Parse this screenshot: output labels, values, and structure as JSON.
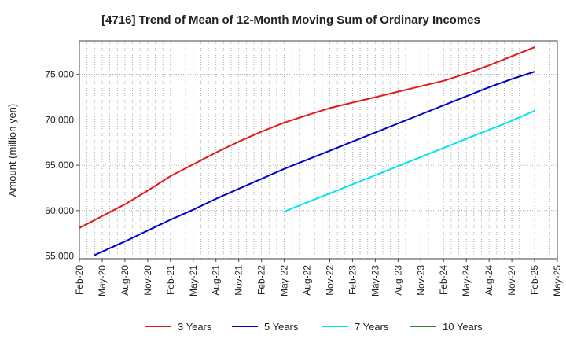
{
  "chart_data": {
    "type": "line",
    "title": "[4716]  Trend of Mean of 12-Month Moving Sum of Ordinary Incomes",
    "xlabel": "",
    "ylabel": "Amount (million yen)",
    "x_tick_labels": [
      "Feb-20",
      "May-20",
      "Aug-20",
      "Nov-20",
      "Feb-21",
      "May-21",
      "Aug-21",
      "Nov-21",
      "Feb-22",
      "May-22",
      "Aug-22",
      "Nov-22",
      "Feb-23",
      "May-23",
      "Aug-23",
      "Nov-23",
      "Feb-24",
      "May-24",
      "Aug-24",
      "Nov-24",
      "Feb-25",
      "May-25"
    ],
    "y_ticks": [
      55000,
      60000,
      65000,
      70000,
      75000
    ],
    "y_tick_labels": [
      "55,000",
      "60,000",
      "65,000",
      "70,000",
      "75,000"
    ],
    "ylim": [
      54700,
      78700
    ],
    "x_range_months": [
      0,
      63
    ],
    "grid": true,
    "legend_position": "bottom",
    "series": [
      {
        "name": "3 Years",
        "color": "#e31a1c",
        "points": [
          [
            0,
            58100
          ],
          [
            3,
            59400
          ],
          [
            6,
            60700
          ],
          [
            9,
            62200
          ],
          [
            12,
            63800
          ],
          [
            15,
            65100
          ],
          [
            18,
            66400
          ],
          [
            21,
            67600
          ],
          [
            24,
            68700
          ],
          [
            27,
            69700
          ],
          [
            30,
            70500
          ],
          [
            33,
            71300
          ],
          [
            36,
            71900
          ],
          [
            39,
            72500
          ],
          [
            42,
            73100
          ],
          [
            45,
            73700
          ],
          [
            48,
            74300
          ],
          [
            51,
            75100
          ],
          [
            54,
            76000
          ],
          [
            57,
            77000
          ],
          [
            60,
            78000
          ]
        ]
      },
      {
        "name": "5 Years",
        "color": "#0000cc",
        "points": [
          [
            2,
            55100
          ],
          [
            6,
            56600
          ],
          [
            9,
            57800
          ],
          [
            12,
            59000
          ],
          [
            15,
            60100
          ],
          [
            18,
            61300
          ],
          [
            21,
            62400
          ],
          [
            24,
            63500
          ],
          [
            27,
            64600
          ],
          [
            30,
            65600
          ],
          [
            33,
            66600
          ],
          [
            36,
            67600
          ],
          [
            39,
            68600
          ],
          [
            42,
            69600
          ],
          [
            45,
            70600
          ],
          [
            48,
            71600
          ],
          [
            51,
            72600
          ],
          [
            54,
            73600
          ],
          [
            57,
            74500
          ],
          [
            60,
            75300
          ]
        ]
      },
      {
        "name": "7 Years",
        "color": "#00e5ee",
        "points": [
          [
            27,
            59900
          ],
          [
            30,
            60900
          ],
          [
            33,
            61900
          ],
          [
            36,
            62900
          ],
          [
            39,
            63900
          ],
          [
            42,
            64900
          ],
          [
            45,
            65900
          ],
          [
            48,
            66900
          ],
          [
            51,
            67900
          ],
          [
            54,
            68900
          ],
          [
            57,
            69900
          ],
          [
            60,
            71000
          ]
        ]
      },
      {
        "name": "10 Years",
        "color": "#228b22",
        "points": []
      }
    ]
  }
}
